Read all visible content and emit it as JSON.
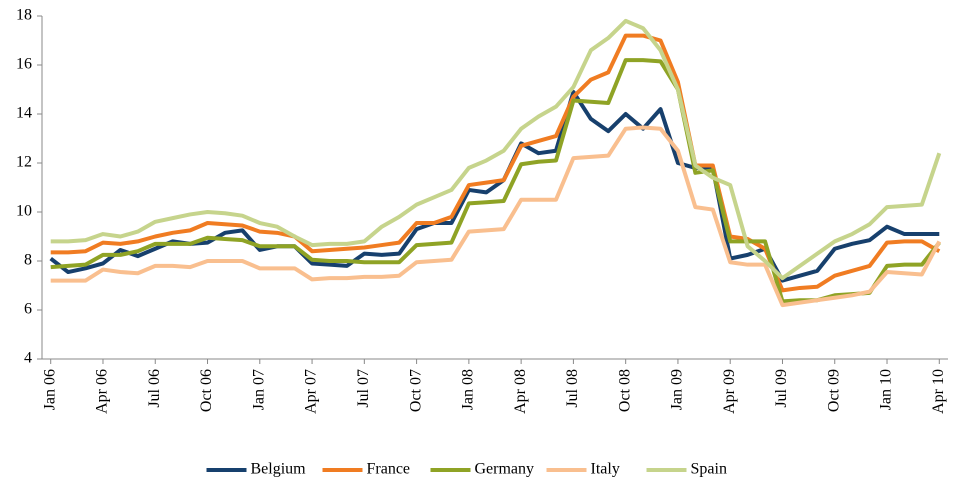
{
  "chart_data": {
    "type": "line",
    "categories": [
      "Jan 06",
      null,
      null,
      "Apr 06",
      null,
      null,
      "Jul 06",
      null,
      null,
      "Oct 06",
      null,
      null,
      "Jan 07",
      null,
      null,
      "Apr 07",
      null,
      null,
      "Jul 07",
      null,
      null,
      "Oct 07",
      null,
      null,
      "Jan 08",
      null,
      null,
      "Apr 08",
      null,
      null,
      "Jul 08",
      null,
      null,
      "Oct 08",
      null,
      null,
      "Jan 09",
      null,
      null,
      "Apr 09",
      null,
      null,
      "Jul 09",
      null,
      null,
      "Oct 09",
      null,
      null,
      "Jan 10",
      null,
      null,
      "Apr 10"
    ],
    "series": [
      {
        "name": "Belgium",
        "color": "#17406d",
        "values": [
          8.1,
          7.55,
          7.7,
          7.9,
          8.45,
          8.2,
          8.5,
          8.8,
          8.7,
          8.75,
          9.15,
          9.25,
          8.45,
          8.6,
          8.6,
          7.9,
          7.85,
          7.8,
          8.3,
          8.25,
          8.3,
          9.3,
          9.55,
          9.55,
          10.9,
          10.8,
          11.3,
          12.8,
          12.4,
          12.5,
          14.9,
          13.8,
          13.3,
          14.0,
          13.4,
          14.2,
          12.0,
          11.8,
          11.8,
          8.1,
          8.25,
          8.5,
          7.2,
          7.4,
          7.6,
          8.5,
          8.7,
          8.85,
          9.4,
          9.1,
          9.1,
          9.1
        ]
      },
      {
        "name": "France",
        "color": "#f07c22",
        "values": [
          8.35,
          8.35,
          8.4,
          8.75,
          8.7,
          8.8,
          9.0,
          9.15,
          9.25,
          9.55,
          9.5,
          9.45,
          9.2,
          9.15,
          9.0,
          8.4,
          8.45,
          8.5,
          8.55,
          8.65,
          8.75,
          9.55,
          9.55,
          9.8,
          11.1,
          11.2,
          11.3,
          12.7,
          12.9,
          13.1,
          14.7,
          15.4,
          15.7,
          17.2,
          17.2,
          17.0,
          15.3,
          11.9,
          11.9,
          9.0,
          8.9,
          8.5,
          6.8,
          6.9,
          6.95,
          7.4,
          7.6,
          7.8,
          8.75,
          8.8,
          8.8,
          8.4
        ]
      },
      {
        "name": "Germany",
        "color": "#8fa325",
        "values": [
          7.75,
          7.8,
          7.85,
          8.25,
          8.25,
          8.4,
          8.7,
          8.7,
          8.7,
          8.95,
          8.9,
          8.85,
          8.6,
          8.6,
          8.6,
          8.05,
          8.0,
          8.0,
          7.95,
          7.95,
          7.95,
          8.65,
          8.7,
          8.75,
          10.35,
          10.4,
          10.45,
          11.95,
          12.05,
          12.1,
          14.55,
          14.5,
          14.45,
          16.2,
          16.2,
          16.15,
          15.0,
          11.6,
          11.7,
          8.8,
          8.8,
          8.8,
          6.35,
          6.4,
          6.4,
          6.6,
          6.65,
          6.7,
          7.8,
          7.85,
          7.85,
          8.75
        ]
      },
      {
        "name": "Italy",
        "color": "#f9bf8f",
        "values": [
          7.2,
          7.2,
          7.2,
          7.65,
          7.55,
          7.5,
          7.8,
          7.8,
          7.75,
          8.0,
          8.0,
          8.0,
          7.7,
          7.7,
          7.7,
          7.25,
          7.3,
          7.3,
          7.35,
          7.35,
          7.4,
          7.95,
          8.0,
          8.05,
          9.2,
          9.25,
          9.3,
          10.5,
          10.5,
          10.5,
          12.2,
          12.25,
          12.3,
          13.4,
          13.45,
          13.4,
          12.5,
          10.2,
          10.1,
          7.95,
          7.85,
          7.85,
          6.2,
          6.3,
          6.4,
          6.5,
          6.6,
          6.75,
          7.55,
          7.5,
          7.45,
          8.8
        ]
      },
      {
        "name": "Spain",
        "color": "#c6d48c",
        "values": [
          8.8,
          8.8,
          8.85,
          9.1,
          9.0,
          9.2,
          9.6,
          9.75,
          9.9,
          10.0,
          9.95,
          9.85,
          9.55,
          9.4,
          9.0,
          8.65,
          8.7,
          8.7,
          8.8,
          9.4,
          9.8,
          10.3,
          10.6,
          10.9,
          11.8,
          12.1,
          12.5,
          13.4,
          13.9,
          14.3,
          15.1,
          16.6,
          17.1,
          17.8,
          17.5,
          16.6,
          15.0,
          11.9,
          11.4,
          11.1,
          8.6,
          8.0,
          7.3,
          7.8,
          8.3,
          8.8,
          9.1,
          9.5,
          10.2,
          10.25,
          10.3,
          12.4
        ]
      }
    ],
    "ylim": [
      4,
      18
    ],
    "yticks": [
      4,
      6,
      8,
      10,
      12,
      14,
      16,
      18
    ],
    "legend": "bottom"
  }
}
